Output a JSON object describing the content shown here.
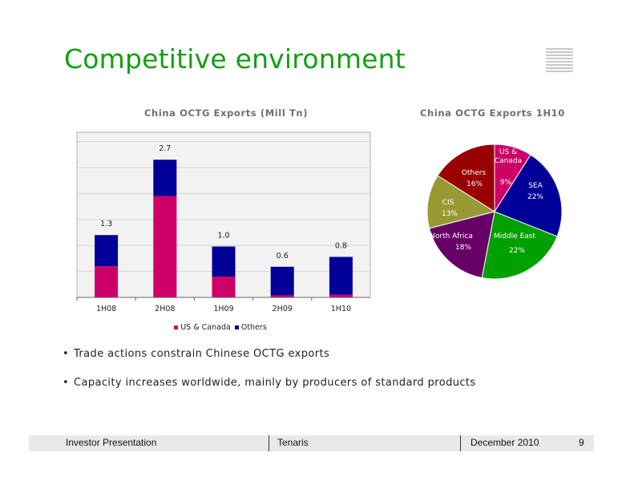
{
  "slide": {
    "title": "Competitive environment"
  },
  "colors": {
    "title": "#12a012",
    "us_canada": "#cc0066",
    "others": "#000099"
  },
  "bar_chart_title": "China OCTG Exports (Mill Tn)",
  "pie_chart_title": "China OCTG Exports 1H10",
  "chart_data": [
    {
      "type": "bar",
      "stacked": true,
      "title": "China OCTG Exports (Mill Tn)",
      "categories": [
        "1H08",
        "2H08",
        "1H09",
        "2H09",
        "1H10"
      ],
      "series": [
        {
          "name": "US & Canada",
          "color": "#cc0066",
          "values": [
            0.6,
            1.95,
            0.4,
            0.04,
            0.05
          ]
        },
        {
          "name": "Others",
          "color": "#000099",
          "values": [
            0.6,
            0.7,
            0.58,
            0.55,
            0.73
          ]
        }
      ],
      "totals": [
        "1.3",
        "2.7",
        "1.0",
        "0.6",
        "0.8"
      ],
      "ylim": [
        0,
        2.7
      ],
      "grid": true,
      "legend": "bottom"
    },
    {
      "type": "pie",
      "title": "China OCTG Exports 1H10",
      "slices": [
        {
          "label": "US & Canada",
          "value": 9,
          "pct": "9%",
          "color": "#cc0066"
        },
        {
          "label": "SEA",
          "value": 22,
          "pct": "22%",
          "color": "#000099"
        },
        {
          "label": "Middle East",
          "value": 22,
          "pct": "22%",
          "color": "#00a000"
        },
        {
          "label": "North Africa",
          "value": 18,
          "pct": "18%",
          "color": "#660066"
        },
        {
          "label": "CIS",
          "value": 13,
          "pct": "13%",
          "color": "#999933"
        },
        {
          "label": "Others",
          "value": 16,
          "pct": "16%",
          "color": "#990000"
        }
      ]
    }
  ],
  "legend": {
    "us_canada": "US & Canada",
    "others": "Others"
  },
  "bullets": [
    "Trade actions constrain Chinese OCTG exports",
    "Capacity increases worldwide, mainly by producers of standard products"
  ],
  "bullet_marker": "•",
  "footer": {
    "left": "Investor Presentation",
    "center": "Tenaris",
    "date": "December 2010",
    "page": "9"
  }
}
